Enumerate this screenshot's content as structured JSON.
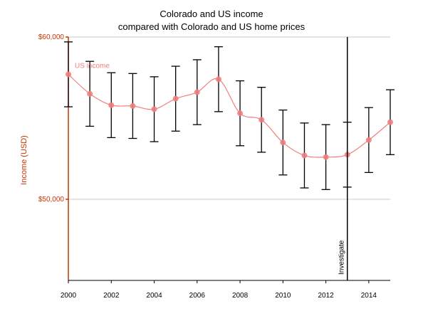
{
  "chart_data": {
    "type": "line",
    "title": [
      "Colorado and US income",
      "compared with Colorado and US home prices"
    ],
    "xlabel": "",
    "ylabel": "Income (USD)",
    "x_range": [
      2000,
      2015
    ],
    "ylim": [
      45000,
      60000
    ],
    "x_ticks": [
      "2000",
      "2002",
      "2004",
      "2006",
      "2008",
      "2010",
      "2012",
      "2014"
    ],
    "y_ticks": [
      {
        "value": 50000,
        "label": "$50,000"
      },
      {
        "value": 60000,
        "label": "$60,000"
      }
    ],
    "grid": "horizontal",
    "series": [
      {
        "name": "US income",
        "color": "#f08080",
        "x": [
          2000,
          2001,
          2002,
          2003,
          2004,
          2005,
          2006,
          2007,
          2008,
          2009,
          2010,
          2011,
          2012,
          2013,
          2014,
          2015
        ],
        "values": [
          57700,
          56500,
          55800,
          55750,
          55550,
          56200,
          56600,
          57400,
          55300,
          54900,
          53500,
          52700,
          52600,
          52750,
          53650,
          54750
        ],
        "error_low": [
          55700,
          54500,
          53800,
          53750,
          53550,
          54200,
          54600,
          55400,
          53300,
          52900,
          51500,
          50700,
          50600,
          50750,
          51650,
          52750
        ],
        "error_high": [
          59700,
          58500,
          57800,
          57750,
          57550,
          58200,
          58600,
          59400,
          57300,
          56900,
          55500,
          54700,
          54600,
          54750,
          55650,
          56750
        ]
      }
    ],
    "annotations": [
      {
        "x": 2013,
        "label": "Investigate"
      }
    ],
    "colors": {
      "axis": "#cc3300",
      "errorbar": "#000000",
      "grid": "#c8c8c8",
      "marker_line": "#000000"
    }
  }
}
